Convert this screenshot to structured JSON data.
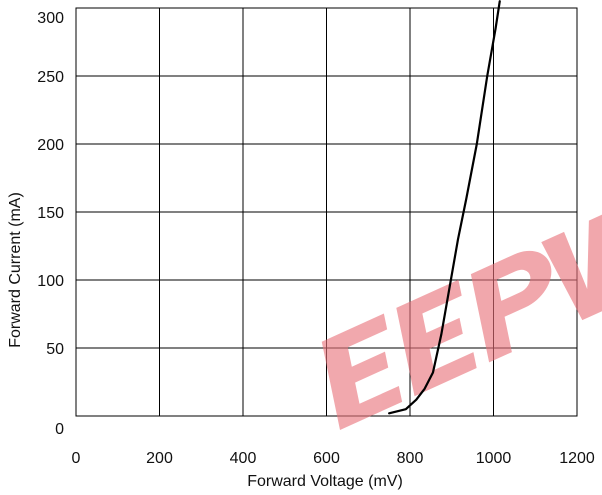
{
  "chart_data": {
    "type": "line",
    "xlabel": "Forward Voltage (mV)",
    "ylabel": "Forward Current (mA)",
    "xlim": [
      0,
      1200
    ],
    "ylim": [
      0,
      300
    ],
    "x_ticks": [
      "0",
      "200",
      "400",
      "600",
      "800",
      "1000",
      "1200"
    ],
    "y_ticks": [
      "0",
      "50",
      "100",
      "150",
      "200",
      "250",
      "300"
    ],
    "grid": true,
    "series": [
      {
        "color": "#000000",
        "x": [
          750,
          790,
          815,
          835,
          855,
          875,
          895,
          915,
          935,
          960,
          985,
          1005,
          1015
        ],
        "y": [
          2,
          5,
          12,
          20,
          32,
          60,
          95,
          130,
          160,
          200,
          250,
          285,
          305
        ]
      }
    ],
    "watermark": {
      "text": "EEPW",
      "color": "#e9727a"
    }
  }
}
